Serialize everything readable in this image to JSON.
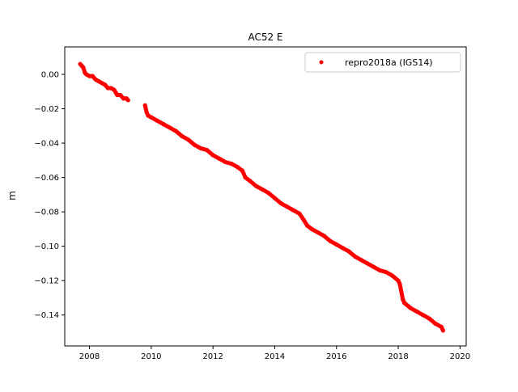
{
  "chart_data": {
    "type": "scatter",
    "title": "AC52 E",
    "xlabel": "",
    "ylabel": "m",
    "xlim": [
      2007.2,
      2020.2
    ],
    "ylim": [
      -0.158,
      0.016
    ],
    "xticks": [
      2008,
      2010,
      2012,
      2014,
      2016,
      2018,
      2020
    ],
    "xtick_labels": [
      "2008",
      "2010",
      "2012",
      "2014",
      "2016",
      "2018",
      "2020"
    ],
    "yticks": [
      0.0,
      -0.02,
      -0.04,
      -0.06,
      -0.08,
      -0.1,
      -0.12,
      -0.14
    ],
    "ytick_labels": [
      "0.00",
      "−0.02",
      "−0.04",
      "−0.06",
      "−0.08",
      "−0.10",
      "−0.12",
      "−0.14"
    ],
    "grid": false,
    "legend_position": "top-right",
    "series": [
      {
        "name": "repro2018a (IGS14)",
        "color": "#ff0000",
        "marker": "dot",
        "x": [
          2007.7,
          2007.75,
          2007.8,
          2007.85,
          2007.9,
          2008.0,
          2008.1,
          2008.2,
          2008.3,
          2008.4,
          2008.5,
          2008.6,
          2008.7,
          2008.8,
          2008.9,
          2009.0,
          2009.1,
          2009.2,
          2009.25,
          2009.8,
          2009.85,
          2009.9,
          2010.0,
          2010.2,
          2010.4,
          2010.6,
          2010.8,
          2011.0,
          2011.2,
          2011.4,
          2011.6,
          2011.8,
          2012.0,
          2012.2,
          2012.4,
          2012.6,
          2012.8,
          2012.95,
          2013.05,
          2013.2,
          2013.4,
          2013.6,
          2013.8,
          2014.0,
          2014.2,
          2014.4,
          2014.6,
          2014.8,
          2014.95,
          2015.05,
          2015.2,
          2015.4,
          2015.6,
          2015.8,
          2016.0,
          2016.2,
          2016.4,
          2016.6,
          2016.8,
          2017.0,
          2017.2,
          2017.4,
          2017.6,
          2017.8,
          2018.0,
          2018.05,
          2018.15,
          2018.2,
          2018.4,
          2018.6,
          2018.8,
          2019.0,
          2019.2,
          2019.4,
          2019.45
        ],
        "y": [
          0.006,
          0.005,
          0.004,
          0.001,
          0.0,
          -0.001,
          -0.001,
          -0.003,
          -0.004,
          -0.005,
          -0.006,
          -0.008,
          -0.008,
          -0.009,
          -0.012,
          -0.012,
          -0.014,
          -0.014,
          -0.015,
          -0.018,
          -0.022,
          -0.024,
          -0.025,
          -0.027,
          -0.029,
          -0.031,
          -0.033,
          -0.036,
          -0.038,
          -0.041,
          -0.043,
          -0.044,
          -0.047,
          -0.049,
          -0.051,
          -0.052,
          -0.054,
          -0.056,
          -0.06,
          -0.062,
          -0.065,
          -0.067,
          -0.069,
          -0.072,
          -0.075,
          -0.077,
          -0.079,
          -0.081,
          -0.085,
          -0.088,
          -0.09,
          -0.092,
          -0.094,
          -0.097,
          -0.099,
          -0.101,
          -0.103,
          -0.106,
          -0.108,
          -0.11,
          -0.112,
          -0.114,
          -0.115,
          -0.117,
          -0.12,
          -0.122,
          -0.131,
          -0.133,
          -0.136,
          -0.138,
          -0.14,
          -0.142,
          -0.145,
          -0.147,
          -0.149
        ]
      }
    ]
  }
}
